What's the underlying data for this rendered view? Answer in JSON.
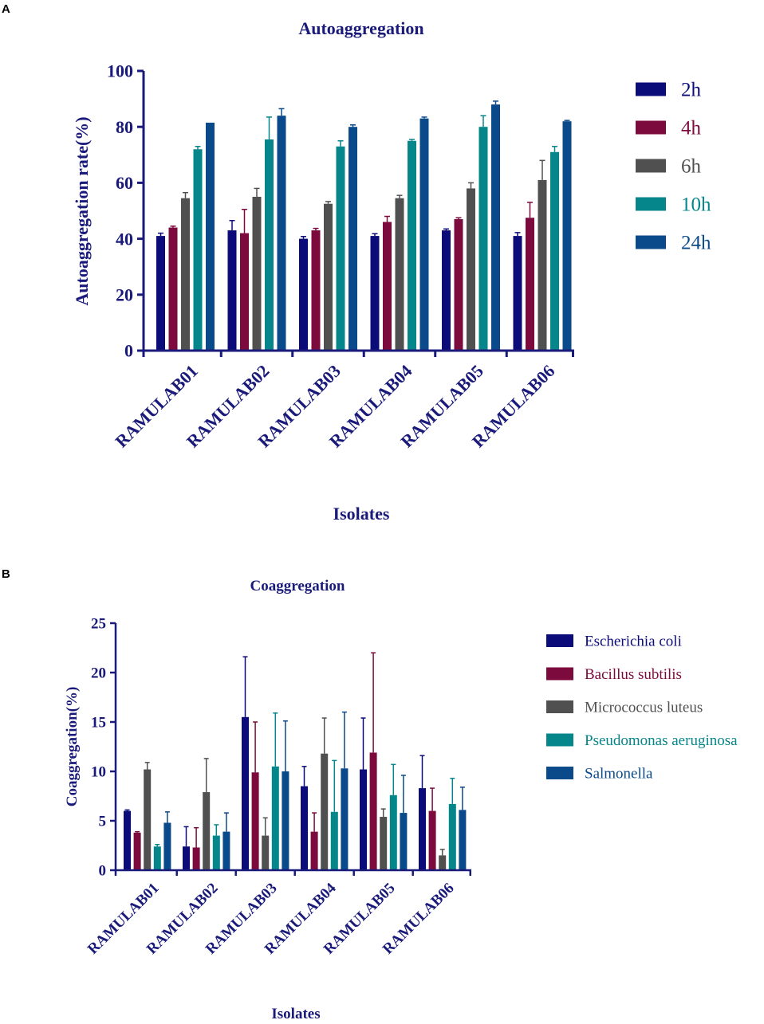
{
  "chart_data": [
    {
      "panel": "A",
      "type": "bar",
      "title": "Autoaggregation",
      "xlabel": "Isolates",
      "ylabel": "Autoaggregation rate(%)",
      "ylim": [
        0,
        100
      ],
      "yticks": [
        "0",
        "20",
        "40",
        "60",
        "80",
        "100"
      ],
      "categories": [
        "RAMULAB01",
        "RAMULAB02",
        "RAMULAB03",
        "RAMULAB04",
        "RAMULAB05",
        "RAMULAB06"
      ],
      "series": [
        {
          "name": "2h",
          "color": "#0b0b7a",
          "values": [
            41,
            43,
            40,
            41,
            43,
            41
          ],
          "errors": [
            1,
            3.5,
            0.8,
            0.8,
            0.5,
            1.2
          ]
        },
        {
          "name": "4h",
          "color": "#7d0a3c",
          "values": [
            44,
            42,
            43,
            46,
            47,
            47.5
          ],
          "errors": [
            0.5,
            8.5,
            0.7,
            2,
            0.5,
            5.5
          ]
        },
        {
          "name": "6h",
          "color": "#505050",
          "values": [
            54.5,
            55,
            52.5,
            54.5,
            58,
            61
          ],
          "errors": [
            2,
            3,
            0.8,
            1,
            2,
            7
          ]
        },
        {
          "name": "10h",
          "color": "#05868a",
          "values": [
            72,
            75.5,
            73,
            75,
            80,
            71
          ],
          "errors": [
            1,
            8,
            2,
            0.5,
            4,
            2
          ]
        },
        {
          "name": "24h",
          "color": "#0b4a8a",
          "values": [
            81.5,
            84,
            80,
            83,
            88,
            82
          ],
          "errors": [
            0,
            2.5,
            0.7,
            0.5,
            1.2,
            0.3
          ]
        }
      ]
    },
    {
      "panel": "B",
      "type": "bar",
      "title": "Coaggregation",
      "xlabel": "Isolates",
      "ylabel": "Coaggregation(%)",
      "ylim": [
        0,
        25
      ],
      "yticks": [
        "0",
        "5",
        "10",
        "15",
        "20",
        "25"
      ],
      "categories": [
        "RAMULAB01",
        "RAMULAB02",
        "RAMULAB03",
        "RAMULAB04",
        "RAMULAB05",
        "RAMULAB06"
      ],
      "series": [
        {
          "name": "Escherichia coli",
          "color": "#0b0b7a",
          "values": [
            6,
            2.4,
            15.5,
            8.5,
            10.2,
            8.3
          ],
          "errors": [
            0.1,
            2,
            6.1,
            2,
            5.2,
            3.3
          ]
        },
        {
          "name": "Bacillus subtilis",
          "color": "#7d0a3c",
          "values": [
            3.8,
            2.3,
            9.9,
            3.9,
            11.9,
            6
          ],
          "errors": [
            0.1,
            2,
            5.1,
            1.9,
            10.1,
            2.3
          ]
        },
        {
          "name": "Micrococcus luteus",
          "color": "#505050",
          "values": [
            10.2,
            7.9,
            3.5,
            11.8,
            5.4,
            1.5
          ],
          "errors": [
            0.7,
            3.4,
            1.8,
            3.6,
            0.8,
            0.6
          ]
        },
        {
          "name": "Pseudomonas aeruginosa",
          "color": "#05868a",
          "values": [
            2.4,
            3.5,
            10.5,
            5.9,
            7.6,
            6.7
          ],
          "errors": [
            0.2,
            1.1,
            5.4,
            5.2,
            3.1,
            2.6
          ]
        },
        {
          "name": "Salmonella",
          "color": "#0b4a8a",
          "values": [
            4.8,
            3.9,
            10,
            10.3,
            5.8,
            6.1
          ],
          "errors": [
            1.1,
            1.9,
            5.1,
            5.7,
            3.8,
            2.3
          ]
        }
      ]
    }
  ]
}
